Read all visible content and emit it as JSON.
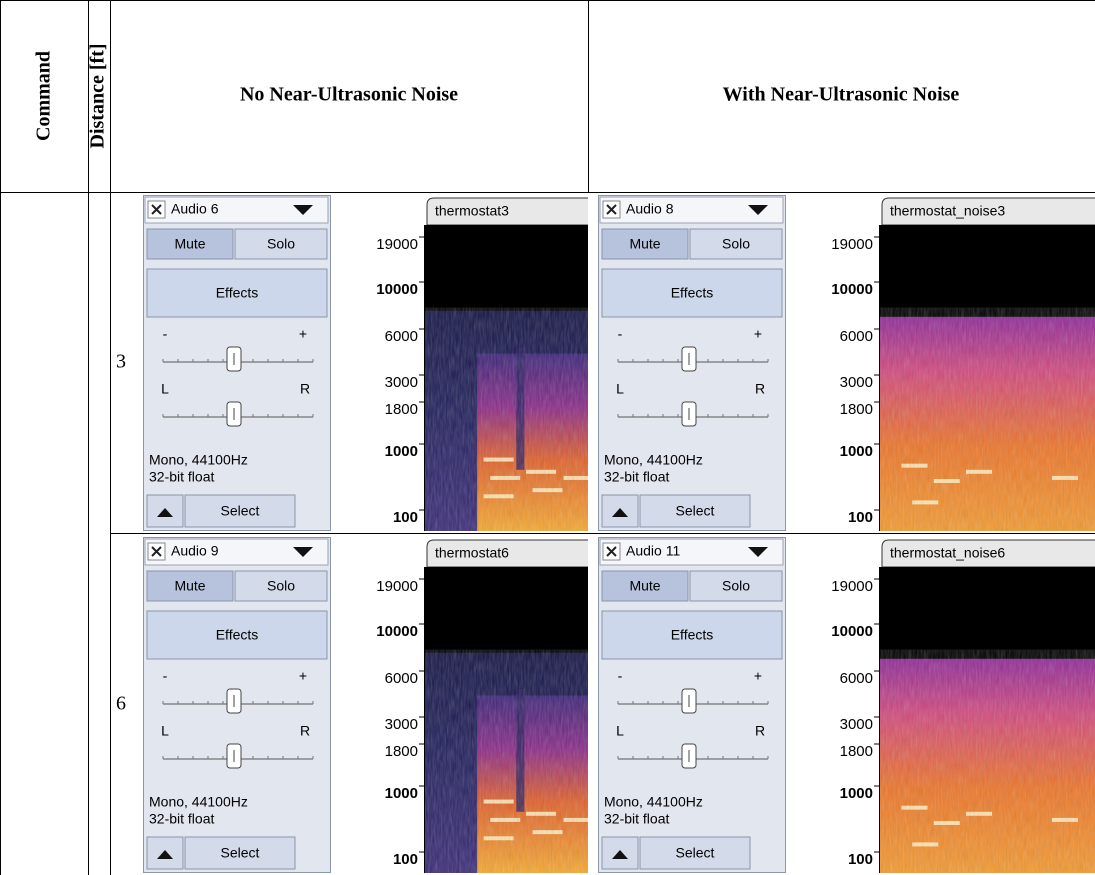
{
  "header": {
    "command": "Command",
    "distance": "Distance [ft]",
    "columns": [
      "No Near-Ultrasonic Noise",
      "With Near-Ultrasonic Noise"
    ]
  },
  "track_controls": {
    "mute": "Mute",
    "solo": "Solo",
    "effects": "Effects",
    "gain_min": "-",
    "gain_max": "+",
    "pan_left": "L",
    "pan_right": "R",
    "format_line1": "Mono, 44100Hz",
    "format_line2": "32-bit float",
    "select": "Select"
  },
  "frequency_axis": [
    {
      "label": 19000,
      "major": false
    },
    {
      "label": 10000,
      "major": true
    },
    {
      "label": 6000,
      "major": false
    },
    {
      "label": 3000,
      "major": false
    },
    {
      "label": 1800,
      "major": false
    },
    {
      "label": 1000,
      "major": true
    },
    {
      "label": 100,
      "major": true
    }
  ],
  "rows": [
    {
      "distance": 3,
      "panels": [
        {
          "track_name": "Audio 6",
          "clip_name": "thermostat3",
          "noise": false
        },
        {
          "track_name": "Audio 8",
          "clip_name": "thermostat_noise3",
          "noise": true
        }
      ]
    },
    {
      "distance": 6,
      "panels": [
        {
          "track_name": "Audio 9",
          "clip_name": "thermostat6",
          "noise": false
        },
        {
          "track_name": "Audio 11",
          "clip_name": "thermostat_noise6",
          "noise": true
        }
      ]
    }
  ]
}
